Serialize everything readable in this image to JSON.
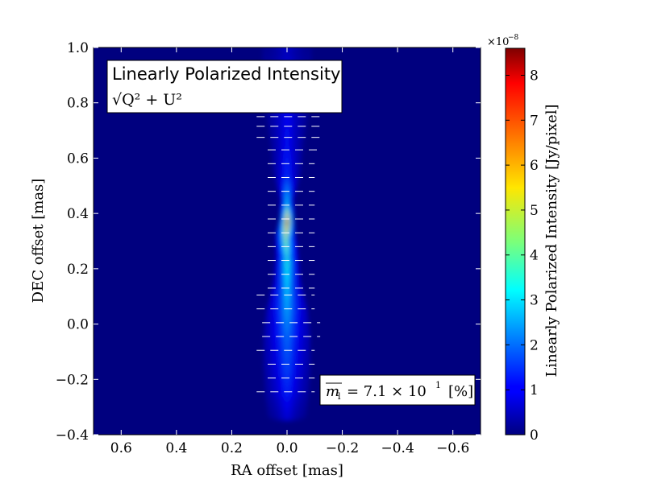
{
  "chart_data": {
    "type": "heatmap",
    "title_box": {
      "line1": "Linearly Polarized Intensity",
      "line2": "√Q² + U²"
    },
    "xlabel": "RA offset [mas]",
    "ylabel": "DEC offset [mas]",
    "xlim": [
      0.7,
      -0.7
    ],
    "ylim": [
      -0.4,
      1.0
    ],
    "x_ticks": [
      0.6,
      0.4,
      0.2,
      0.0,
      -0.2,
      -0.4,
      -0.6
    ],
    "x_tick_labels": [
      "0.6",
      "0.4",
      "0.2",
      "0.0",
      "−0.2",
      "−0.4",
      "−0.6"
    ],
    "y_ticks": [
      -0.4,
      -0.2,
      0.0,
      0.2,
      0.4,
      0.6,
      0.8,
      1.0
    ],
    "y_tick_labels": [
      "−0.4",
      "−0.2",
      "0.0",
      "0.2",
      "0.4",
      "0.6",
      "0.8",
      "1.0"
    ],
    "colorbar": {
      "label": "Linearly Polarized Intensity [Jy/pixel]",
      "multiplier": "×10",
      "multiplier_exp": "−8",
      "range": [
        0,
        8.6
      ],
      "ticks": [
        0,
        1,
        2,
        3,
        4,
        5,
        6,
        7,
        8
      ],
      "tick_labels": [
        "0",
        "1",
        "2",
        "3",
        "4",
        "5",
        "6",
        "7",
        "8"
      ],
      "colormap": "jet"
    },
    "annotation": {
      "symbol": "m",
      "subscript": "l",
      "value_text": "= 7.1 × 10",
      "exponent": "1",
      "unit": "[%]"
    },
    "jet_profile": [
      {
        "y": -0.33,
        "x": 0.0,
        "width": 0.07,
        "peak": 0.8
      },
      {
        "y": -0.25,
        "x": 0.0,
        "width": 0.08,
        "peak": 1.3
      },
      {
        "y": -0.15,
        "x": 0.0,
        "width": 0.085,
        "peak": 1.7
      },
      {
        "y": -0.05,
        "x": 0.0,
        "width": 0.085,
        "peak": 2.0
      },
      {
        "y": 0.05,
        "x": 0.0,
        "width": 0.075,
        "peak": 2.5
      },
      {
        "y": 0.15,
        "x": 0.0,
        "width": 0.05,
        "peak": 3.0
      },
      {
        "y": 0.25,
        "x": 0.0,
        "width": 0.04,
        "peak": 3.6
      },
      {
        "y": 0.32,
        "x": 0.005,
        "width": 0.035,
        "peak": 5.0
      },
      {
        "y": 0.38,
        "x": 0.0,
        "width": 0.025,
        "peak": 8.6
      },
      {
        "y": 0.45,
        "x": 0.0,
        "width": 0.025,
        "peak": 3.0
      },
      {
        "y": 0.55,
        "x": 0.0,
        "width": 0.05,
        "peak": 1.5
      },
      {
        "y": 0.65,
        "x": 0.0,
        "width": 0.06,
        "peak": 1.2
      },
      {
        "y": 0.75,
        "x": 0.0,
        "width": 0.075,
        "peak": 1.1
      },
      {
        "y": 0.85,
        "x": 0.0,
        "width": 0.085,
        "peak": 1.0
      },
      {
        "y": 0.95,
        "x": 0.0,
        "width": 0.09,
        "peak": 0.8
      },
      {
        "y": 1.02,
        "x": 0.0,
        "width": 0.09,
        "peak": 0.6
      }
    ],
    "vector_rows": [
      {
        "y": 0.815,
        "x_from": 0.11,
        "x_to": -0.12
      },
      {
        "y": 0.785,
        "x_from": 0.11,
        "x_to": -0.12
      },
      {
        "y": 0.75,
        "x_from": 0.11,
        "x_to": -0.12
      },
      {
        "y": 0.715,
        "x_from": 0.11,
        "x_to": -0.12
      },
      {
        "y": 0.675,
        "x_from": 0.11,
        "x_to": -0.12
      },
      {
        "y": 0.63,
        "x_from": 0.07,
        "x_to": -0.12
      },
      {
        "y": 0.58,
        "x_from": 0.07,
        "x_to": -0.1
      },
      {
        "y": 0.53,
        "x_from": 0.07,
        "x_to": -0.1
      },
      {
        "y": 0.48,
        "x_from": 0.07,
        "x_to": -0.1
      },
      {
        "y": 0.43,
        "x_from": 0.07,
        "x_to": -0.1
      },
      {
        "y": 0.38,
        "x_from": 0.07,
        "x_to": -0.1
      },
      {
        "y": 0.33,
        "x_from": 0.07,
        "x_to": -0.1
      },
      {
        "y": 0.28,
        "x_from": 0.07,
        "x_to": -0.1
      },
      {
        "y": 0.23,
        "x_from": 0.07,
        "x_to": -0.1
      },
      {
        "y": 0.18,
        "x_from": 0.07,
        "x_to": -0.1
      },
      {
        "y": 0.13,
        "x_from": 0.07,
        "x_to": -0.1
      },
      {
        "y": 0.105,
        "x_from": 0.11,
        "x_to": -0.1
      },
      {
        "y": 0.055,
        "x_from": 0.11,
        "x_to": -0.1
      },
      {
        "y": 0.005,
        "x_from": 0.09,
        "x_to": -0.12
      },
      {
        "y": -0.045,
        "x_from": 0.09,
        "x_to": -0.12
      },
      {
        "y": -0.095,
        "x_from": 0.11,
        "x_to": -0.1
      },
      {
        "y": -0.145,
        "x_from": 0.07,
        "x_to": -0.1
      },
      {
        "y": -0.195,
        "x_from": 0.07,
        "x_to": -0.1
      },
      {
        "y": -0.245,
        "x_from": 0.11,
        "x_to": -0.1
      }
    ]
  }
}
